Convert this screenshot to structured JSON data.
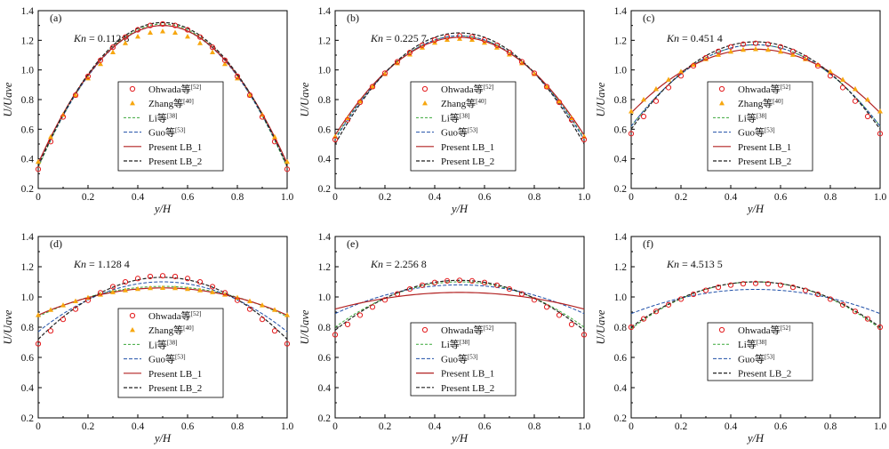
{
  "figure": {
    "ylabel": "U/Uave",
    "xlabel": "y/H",
    "legend": {
      "ohwada": "Ohwada等[52]",
      "zhang": "Zhang等[40]",
      "li": "Li等[38]",
      "guo": "Guo等[53]",
      "lb1": "Present LB_1",
      "lb2": "Present LB_2"
    }
  },
  "colors": {
    "ohwada": "#e31a1c",
    "zhang": "#f7a70f",
    "li": "#3aa83a",
    "guo": "#1f4fa8",
    "lb1": "#b22222",
    "lb2": "#222222"
  },
  "chart_data": [
    {
      "type": "line",
      "panel": "(a)",
      "kn": "Kn = 0.112 8",
      "xlim": [
        0,
        1
      ],
      "ylim": [
        0.2,
        1.4
      ],
      "xticks": [
        "0",
        "0.2",
        "0.4",
        "0.6",
        "0.8",
        "1.0"
      ],
      "yticks": [
        "0.2",
        "0.4",
        "0.6",
        "0.8",
        "1.0",
        "1.2",
        "1.4"
      ],
      "legend_items": [
        "ohwada",
        "zhang",
        "li",
        "guo",
        "lb1",
        "lb2"
      ],
      "profiles": {
        "ohwada": {
          "w": 0.33,
          "c": 1.31
        },
        "zhang": {
          "w": 0.38,
          "c": 1.26
        },
        "li": {
          "w": 0.34,
          "c": 1.31
        },
        "guo": {
          "w": 0.35,
          "c": 1.3
        },
        "lb1": {
          "w": 0.37,
          "c": 1.3
        },
        "lb2": {
          "w": 0.35,
          "c": 1.32
        }
      }
    },
    {
      "type": "line",
      "panel": "(b)",
      "kn": "Kn = 0.225 7",
      "xlim": [
        0,
        1
      ],
      "ylim": [
        0.2,
        1.4
      ],
      "xticks": [
        "0",
        "0.2",
        "0.4",
        "0.6",
        "0.8",
        "1.0"
      ],
      "yticks": [
        "0.2",
        "0.4",
        "0.6",
        "0.8",
        "1.0",
        "1.2",
        "1.4"
      ],
      "legend_items": [
        "ohwada",
        "zhang",
        "li",
        "guo",
        "lb1",
        "lb2"
      ],
      "profiles": {
        "ohwada": {
          "w": 0.53,
          "c": 1.23
        },
        "zhang": {
          "w": 0.55,
          "c": 1.21
        },
        "li": {
          "w": 0.54,
          "c": 1.23
        },
        "guo": {
          "w": 0.53,
          "c": 1.23
        },
        "lb1": {
          "w": 0.56,
          "c": 1.22
        },
        "lb2": {
          "w": 0.5,
          "c": 1.25
        }
      }
    },
    {
      "type": "line",
      "panel": "(c)",
      "kn": "Kn = 0.451 4",
      "xlim": [
        0,
        1
      ],
      "ylim": [
        0.2,
        1.4
      ],
      "xticks": [
        "0",
        "0.2",
        "0.4",
        "0.6",
        "0.8",
        "1.0"
      ],
      "yticks": [
        "0.2",
        "0.4",
        "0.6",
        "0.8",
        "1.0",
        "1.2",
        "1.4"
      ],
      "legend_items": [
        "ohwada",
        "zhang",
        "li",
        "guo",
        "lb1",
        "lb2"
      ],
      "profiles": {
        "ohwada": {
          "w": 0.57,
          "c": 1.18
        },
        "zhang": {
          "w": 0.72,
          "c": 1.14
        },
        "li": {
          "w": 0.62,
          "c": 1.17
        },
        "guo": {
          "w": 0.62,
          "c": 1.17
        },
        "lb1": {
          "w": 0.71,
          "c": 1.14
        },
        "lb2": {
          "w": 0.6,
          "c": 1.19
        }
      }
    },
    {
      "type": "line",
      "panel": "(d)",
      "kn": "Kn = 1.128 4",
      "xlim": [
        0,
        1
      ],
      "ylim": [
        0.2,
        1.4
      ],
      "xticks": [
        "0",
        "0.2",
        "0.4",
        "0.6",
        "0.8",
        "1.0"
      ],
      "yticks": [
        "0.2",
        "0.4",
        "0.6",
        "0.8",
        "1.0",
        "1.2",
        "1.4"
      ],
      "legend_items": [
        "ohwada",
        "zhang",
        "li",
        "guo",
        "lb1",
        "lb2"
      ],
      "profiles": {
        "ohwada": {
          "w": 0.69,
          "c": 1.14
        },
        "zhang": {
          "w": 0.88,
          "c": 1.06
        },
        "li": {
          "w": 0.87,
          "c": 1.07
        },
        "guo": {
          "w": 0.77,
          "c": 1.1
        },
        "lb1": {
          "w": 0.88,
          "c": 1.06
        },
        "lb2": {
          "w": 0.72,
          "c": 1.13
        }
      }
    },
    {
      "type": "line",
      "panel": "(e)",
      "kn": "Kn = 2.256 8",
      "xlim": [
        0,
        1
      ],
      "ylim": [
        0.2,
        1.4
      ],
      "xticks": [
        "0",
        "0.2",
        "0.4",
        "0.6",
        "0.8",
        "1.0"
      ],
      "yticks": [
        "0.2",
        "0.4",
        "0.6",
        "0.8",
        "1.0",
        "1.2",
        "1.4"
      ],
      "legend_items": [
        "ohwada",
        "li",
        "guo",
        "lb1",
        "lb2"
      ],
      "profiles": {
        "ohwada": {
          "w": 0.75,
          "c": 1.11
        },
        "li": {
          "w": 0.8,
          "c": 1.1
        },
        "guo": {
          "w": 0.89,
          "c": 1.08
        },
        "lb1": {
          "w": 0.92,
          "c": 1.03
        },
        "lb2": {
          "w": 0.78,
          "c": 1.11
        }
      }
    },
    {
      "type": "line",
      "panel": "(f)",
      "kn": "Kn = 4.513 5",
      "xlim": [
        0,
        1
      ],
      "ylim": [
        0.2,
        1.4
      ],
      "xticks": [
        "0",
        "0.2",
        "0.4",
        "0.6",
        "0.8",
        "1.0"
      ],
      "yticks": [
        "0.2",
        "0.4",
        "0.6",
        "0.8",
        "1.0",
        "1.2",
        "1.4"
      ],
      "legend_items": [
        "ohwada",
        "li",
        "guo",
        "lb2"
      ],
      "profiles": {
        "ohwada": {
          "w": 0.8,
          "c": 1.09
        },
        "li": {
          "w": 0.79,
          "c": 1.1
        },
        "guo": {
          "w": 0.89,
          "c": 1.05
        },
        "lb2": {
          "w": 0.8,
          "c": 1.1
        }
      }
    }
  ]
}
